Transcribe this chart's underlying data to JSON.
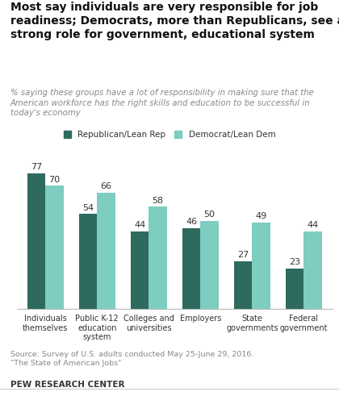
{
  "title": "Most say individuals are very responsible for job\nreadiness; Democrats, more than Republicans, see a\nstrong role for government, educational system",
  "subtitle": "% saying these groups have a lot of responsibility in making sure that the\nAmerican workforce has the right skills and education to be successful in\ntoday's economy",
  "categories": [
    "Individuals\nthemselves",
    "Public K-12\neducation\nsystem",
    "Colleges and\nuniversities",
    "Employers",
    "State\ngovernments",
    "Federal\ngovernment"
  ],
  "republican_values": [
    77,
    54,
    44,
    46,
    27,
    23
  ],
  "democrat_values": [
    70,
    66,
    58,
    50,
    49,
    44
  ],
  "republican_color": "#2e6b5e",
  "democrat_color": "#7ecdc1",
  "legend_labels": [
    "Republican/Lean Rep",
    "Democrat/Lean Dem"
  ],
  "source": "Source: Survey of U.S. adults conducted May 25-June 29, 2016.\n\"The State of American Jobs\"",
  "footer": "PEW RESEARCH CENTER",
  "bar_width": 0.35,
  "ylim": [
    0,
    90
  ],
  "background_color": "#ffffff"
}
